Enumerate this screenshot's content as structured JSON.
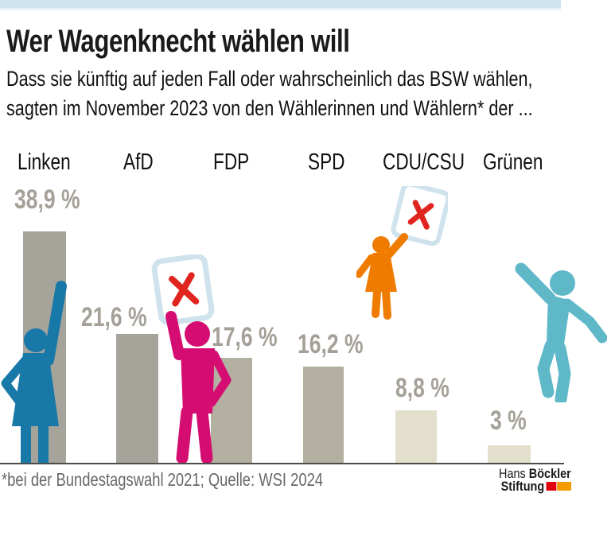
{
  "header": {
    "title": "Wer Wagenknecht wählen will",
    "subtitle_line1": "Dass sie künftig auf jeden Fall oder wahrscheinlich das BSW wählen,",
    "subtitle_line2": "sagten im November 2023 von den Wählerinnen und Wählern* der ..."
  },
  "chart_data": {
    "type": "bar",
    "title": "Wer Wagenknecht wählen will",
    "subtitle": "Dass sie künftig auf jeden Fall oder wahrscheinlich das BSW wählen, sagten im November 2023 von den Wählerinnen und Wählern* der ...",
    "categories": [
      "Linken",
      "AfD",
      "FDP",
      "SPD",
      "CDU/CSU",
      "Grünen"
    ],
    "values": [
      38.9,
      21.6,
      17.6,
      16.2,
      8.8,
      3
    ],
    "value_labels": [
      "38,9 %",
      "21,6 %",
      "17,6 %",
      "16,2 %",
      "8,8 %",
      "3 %"
    ],
    "unit": "%",
    "ylim": [
      0,
      40
    ],
    "grid": false,
    "legend": false,
    "bar_colors": [
      "#a6a39a",
      "#a6a39a",
      "#b3b0a1",
      "#b3b0a1",
      "#e2e0cc",
      "#e2e0cc"
    ],
    "label_color": "#a5a198"
  },
  "figures": [
    {
      "name": "linken-voter-figure",
      "color": "#1878a8",
      "pictogram": "woman raising arm"
    },
    {
      "name": "fdp-voter-figure",
      "color": "#d50c72",
      "pictogram": "man holding ballot card"
    },
    {
      "name": "cdu-voter-figure",
      "color": "#ef7c00",
      "pictogram": "woman holding ballot card"
    },
    {
      "name": "gruene-voter-figure",
      "color": "#5fb8c8",
      "pictogram": "man jumping with raised arm"
    }
  ],
  "ballot_card": {
    "border_color": "#cfe3ec",
    "x_color": "#e0251f"
  },
  "footer": {
    "footnote": "*bei der Bundestagswahl 2021; Quelle: WSI 2024",
    "logo": {
      "line1_regular": "Hans",
      "line1_bold": "Böckler",
      "line2_bold": "Stiftung",
      "mark_colors": [
        "#e1000f",
        "#f59b00"
      ]
    }
  },
  "colors": {
    "accent_bar": "#cfe4ee",
    "baseline": "#4c4c4a",
    "footnote_text": "#686868",
    "title_text": "#1a1a1a"
  }
}
